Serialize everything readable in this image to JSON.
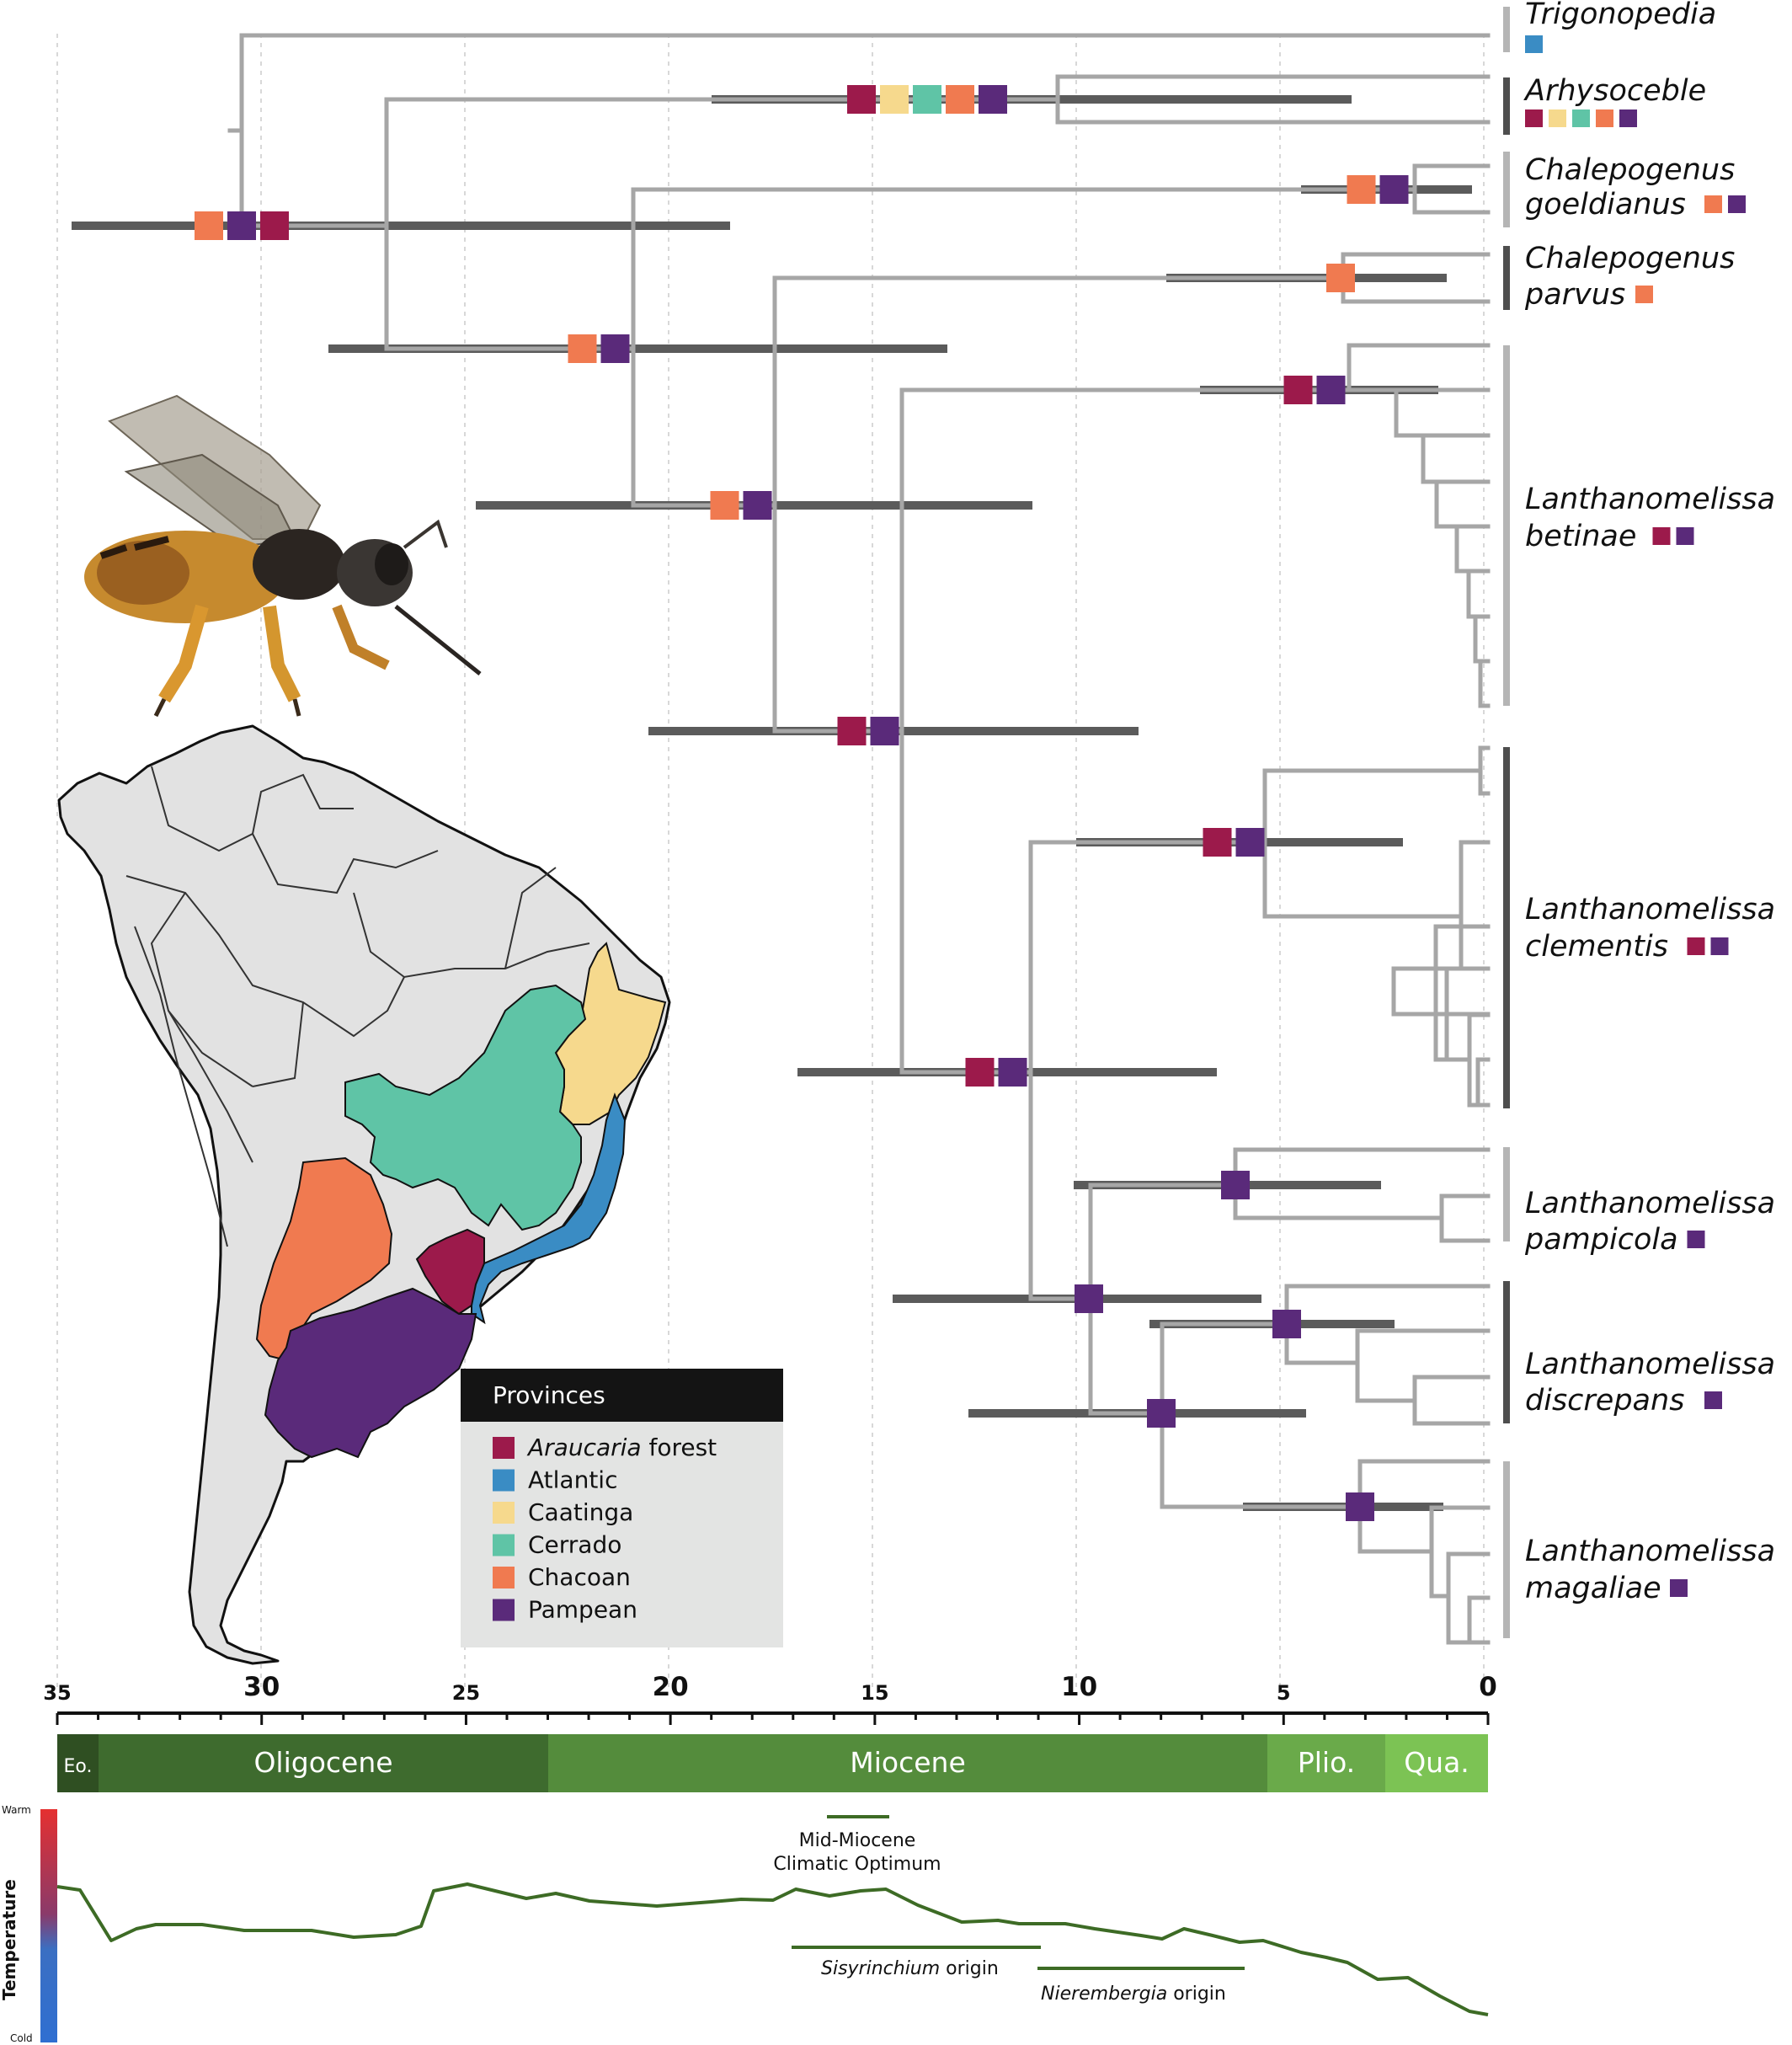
{
  "colors": {
    "araucaria": "#9c1a4b",
    "atlantic": "#3a8cc4",
    "caatinga": "#f6d98d",
    "cerrado": "#5fc4a6",
    "chacoan": "#f07a50",
    "pampean": "#5a2a7a",
    "branch": "#a6a6a6",
    "bar": "#5a5a5a",
    "land": "#e2e2e2",
    "eocene": "#2f4f22",
    "oligocene": "#3e6b2e",
    "miocene": "#548c3c",
    "pliocene": "#6aaa4a",
    "quaternary": "#7cc354",
    "temp_line": "#3d6b25"
  },
  "taxa": [
    {
      "genus": "Trigonopedia",
      "species": "",
      "areas": [
        "atlantic"
      ]
    },
    {
      "genus": "Arhysoceble",
      "species": "",
      "areas": [
        "araucaria",
        "caatinga",
        "cerrado",
        "chacoan",
        "pampean"
      ]
    },
    {
      "genus": "Chalepogenus",
      "species": "goeldianus",
      "areas": [
        "chacoan",
        "pampean"
      ]
    },
    {
      "genus": "Chalepogenus",
      "species": "parvus",
      "areas": [
        "chacoan"
      ]
    },
    {
      "genus": "Lanthanomelissa",
      "species": "betinae",
      "areas": [
        "araucaria",
        "pampean"
      ]
    },
    {
      "genus": "Lanthanomelissa",
      "species": "clementis",
      "areas": [
        "araucaria",
        "pampean"
      ]
    },
    {
      "genus": "Lanthanomelissa",
      "species": "pampicola",
      "areas": [
        "pampean"
      ]
    },
    {
      "genus": "Lanthanomelissa",
      "species": "discrepans",
      "areas": [
        "pampean"
      ]
    },
    {
      "genus": "Lanthanomelissa",
      "species": "magaliae",
      "areas": [
        "pampean"
      ]
    }
  ],
  "legend": {
    "title": "Provinces",
    "items": [
      {
        "key": "araucaria",
        "italic": "Araucaria",
        "label": " forest"
      },
      {
        "key": "atlantic",
        "italic": "",
        "label": "Atlantic"
      },
      {
        "key": "caatinga",
        "italic": "",
        "label": "Caatinga"
      },
      {
        "key": "cerrado",
        "italic": "",
        "label": "Cerrado"
      },
      {
        "key": "chacoan",
        "italic": "",
        "label": "Chacoan"
      },
      {
        "key": "pampean",
        "italic": "",
        "label": "Pampean"
      }
    ]
  },
  "axis": {
    "major_ticks": [
      "35",
      "30",
      "25",
      "20",
      "15",
      "10",
      "5",
      "0"
    ]
  },
  "epochs": [
    {
      "label": "Eo.",
      "color_key": "eocene"
    },
    {
      "label": "Oligocene",
      "color_key": "oligocene"
    },
    {
      "label": "Miocene",
      "color_key": "miocene"
    },
    {
      "label": "Plio.",
      "color_key": "pliocene"
    },
    {
      "label": "Qua.",
      "color_key": "quaternary"
    }
  ],
  "temperature": {
    "axis_label": "Temperature",
    "warm": "Warm",
    "cold": "Cold",
    "events": [
      {
        "line1": "Mid-Miocene",
        "line2": "Climatic Optimum"
      },
      {
        "italic": "Sisyrinchium",
        "label": " origin"
      },
      {
        "italic": "Nierembergia",
        "label": " origin"
      }
    ]
  }
}
